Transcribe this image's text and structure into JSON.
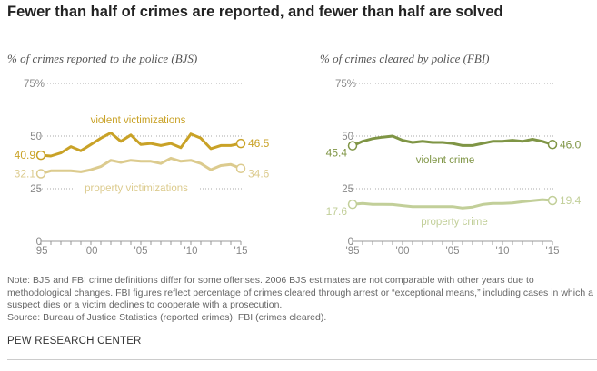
{
  "title": "Fewer than half of crimes are reported, and fewer than half are solved",
  "note": "Note: BJS and FBI crime definitions differ for some offenses. 2006 BJS estimates are not comparable with other years due to methodological changes. FBI figures reflect percentage of crimes cleared through arrest or “exceptional means,” including cases in which a suspect dies or a victim declines to cooperate with a prosecution.",
  "source": "Source: Bureau of Justice Statistics (reported crimes), FBI (crimes cleared).",
  "brand": "PEW RESEARCH CENTER",
  "chart_data": [
    {
      "type": "line",
      "subtitle": "% of crimes reported to the police (BJS)",
      "x": [
        1995,
        1996,
        1997,
        1998,
        1999,
        2000,
        2001,
        2002,
        2003,
        2004,
        2005,
        2006,
        2007,
        2008,
        2009,
        2010,
        2011,
        2012,
        2013,
        2014,
        2015
      ],
      "xticks": [
        "'95",
        "'00",
        "'05",
        "'10",
        "'15"
      ],
      "yticks": [
        "0",
        "25",
        "50",
        "75%"
      ],
      "ylim": [
        0,
        75
      ],
      "grid": true,
      "series": [
        {
          "name": "violent victimizations",
          "color": "#c9a227",
          "start_label": "40.9",
          "end_label": "46.5",
          "values": [
            40.9,
            40.5,
            42,
            45,
            43,
            46,
            49,
            51.5,
            47.5,
            50.5,
            46,
            46.5,
            45.5,
            46.5,
            44.5,
            51,
            49,
            44,
            45.5,
            45.5,
            46.5
          ]
        },
        {
          "name": "property victimizations",
          "color": "#dccb8e",
          "start_label": "32.1",
          "end_label": "34.6",
          "values": [
            32.1,
            33.5,
            33.5,
            33.5,
            33,
            34,
            35.5,
            38.5,
            37.5,
            38.5,
            38,
            38,
            37,
            39.5,
            38,
            38.5,
            37,
            34,
            36,
            36.5,
            34.6
          ]
        }
      ]
    },
    {
      "type": "line",
      "subtitle": "% of crimes cleared by police (FBI)",
      "x": [
        1995,
        1996,
        1997,
        1998,
        1999,
        2000,
        2001,
        2002,
        2003,
        2004,
        2005,
        2006,
        2007,
        2008,
        2009,
        2010,
        2011,
        2012,
        2013,
        2014,
        2015
      ],
      "xticks": [
        "'95",
        "'00",
        "'05",
        "'10",
        "'15"
      ],
      "yticks": [
        "0",
        "25",
        "50",
        "75%"
      ],
      "ylim": [
        0,
        75
      ],
      "grid": true,
      "series": [
        {
          "name": "violent crime",
          "color": "#7f9545",
          "start_label": "45.4",
          "end_label": "46.0",
          "values": [
            45.4,
            47.5,
            48.8,
            49.5,
            50,
            48,
            47,
            47.5,
            47,
            47,
            46.5,
            45.5,
            45.5,
            46.5,
            47.5,
            47.5,
            48,
            47.5,
            48.5,
            47.5,
            46.0
          ]
        },
        {
          "name": "property crime",
          "color": "#c2cf99",
          "start_label": "17.6",
          "end_label": "19.4",
          "values": [
            17.6,
            18,
            17.6,
            17.6,
            17.5,
            17,
            16.5,
            16.5,
            16.5,
            16.5,
            16.5,
            15.8,
            16.3,
            17.5,
            18,
            18,
            18.2,
            18.8,
            19.3,
            19.8,
            19.4
          ]
        }
      ]
    }
  ]
}
